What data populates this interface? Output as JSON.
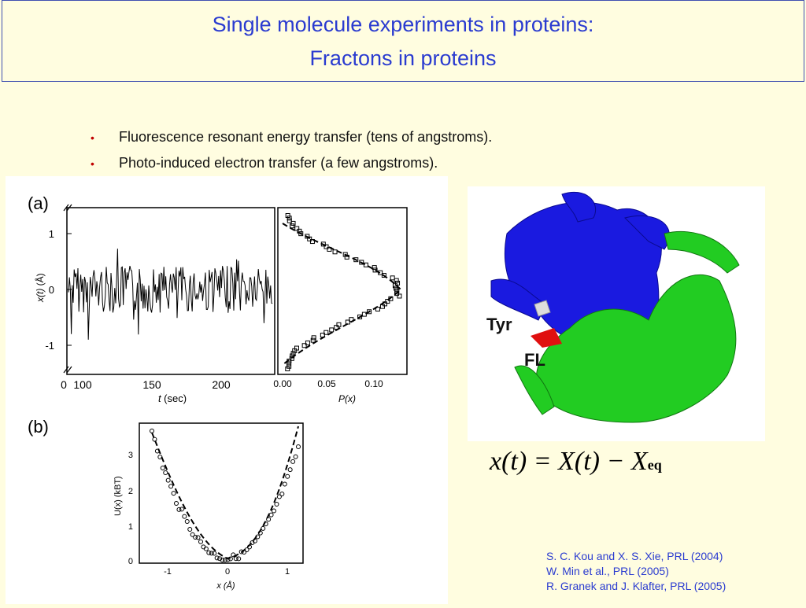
{
  "title": {
    "line1": "Single molecule experiments in proteins:",
    "line2": "Fractons in proteins"
  },
  "bullets": [
    "Fluorescence resonant energy transfer (tens of angstroms).",
    "Photo-induced electron transfer (a few angstroms)."
  ],
  "bullet_marker": "•",
  "colors": {
    "title": "#2a3bd0",
    "bullet": "#c00000",
    "background": "#fffde0",
    "refs": "#2a3bd0"
  },
  "figure_left": {
    "panel_a": {
      "label": "(a)",
      "ylabel_italic": "x(t)",
      "ylabel_unit": " (Å)",
      "yticks": [
        "1",
        "0",
        "-1"
      ],
      "xticks": [
        "0",
        "100",
        "150",
        "200"
      ],
      "xlabel_italic": "t",
      "xlabel_unit": " (sec)",
      "p_xticks": [
        "0.00",
        "0.05",
        "0.10"
      ],
      "p_xlabel": "P(x)"
    },
    "panel_b": {
      "label": "(b)",
      "ylabel": "U(x) (kBT)",
      "yticks": [
        "0",
        "1",
        "2",
        "3"
      ],
      "xticks": [
        "-1",
        "0",
        "1"
      ],
      "xlabel": "x (Å)"
    }
  },
  "figure_right": {
    "labels": {
      "tyr": "Tyr",
      "fl": "FL"
    },
    "colors": {
      "domain1": "#1a1ae0",
      "domain2": "#22cc22",
      "fl": "#e01010",
      "tyr": "#dddddd"
    }
  },
  "equation": {
    "lhs": "x(t) = X(t) − X",
    "sub": "eq"
  },
  "refs": [
    "S. C. Kou and X. S. Xie, PRL (2004)",
    "W. Min et al., PRL (2005)",
    "R. Granek and J. Klafter, PRL (2005)"
  ]
}
